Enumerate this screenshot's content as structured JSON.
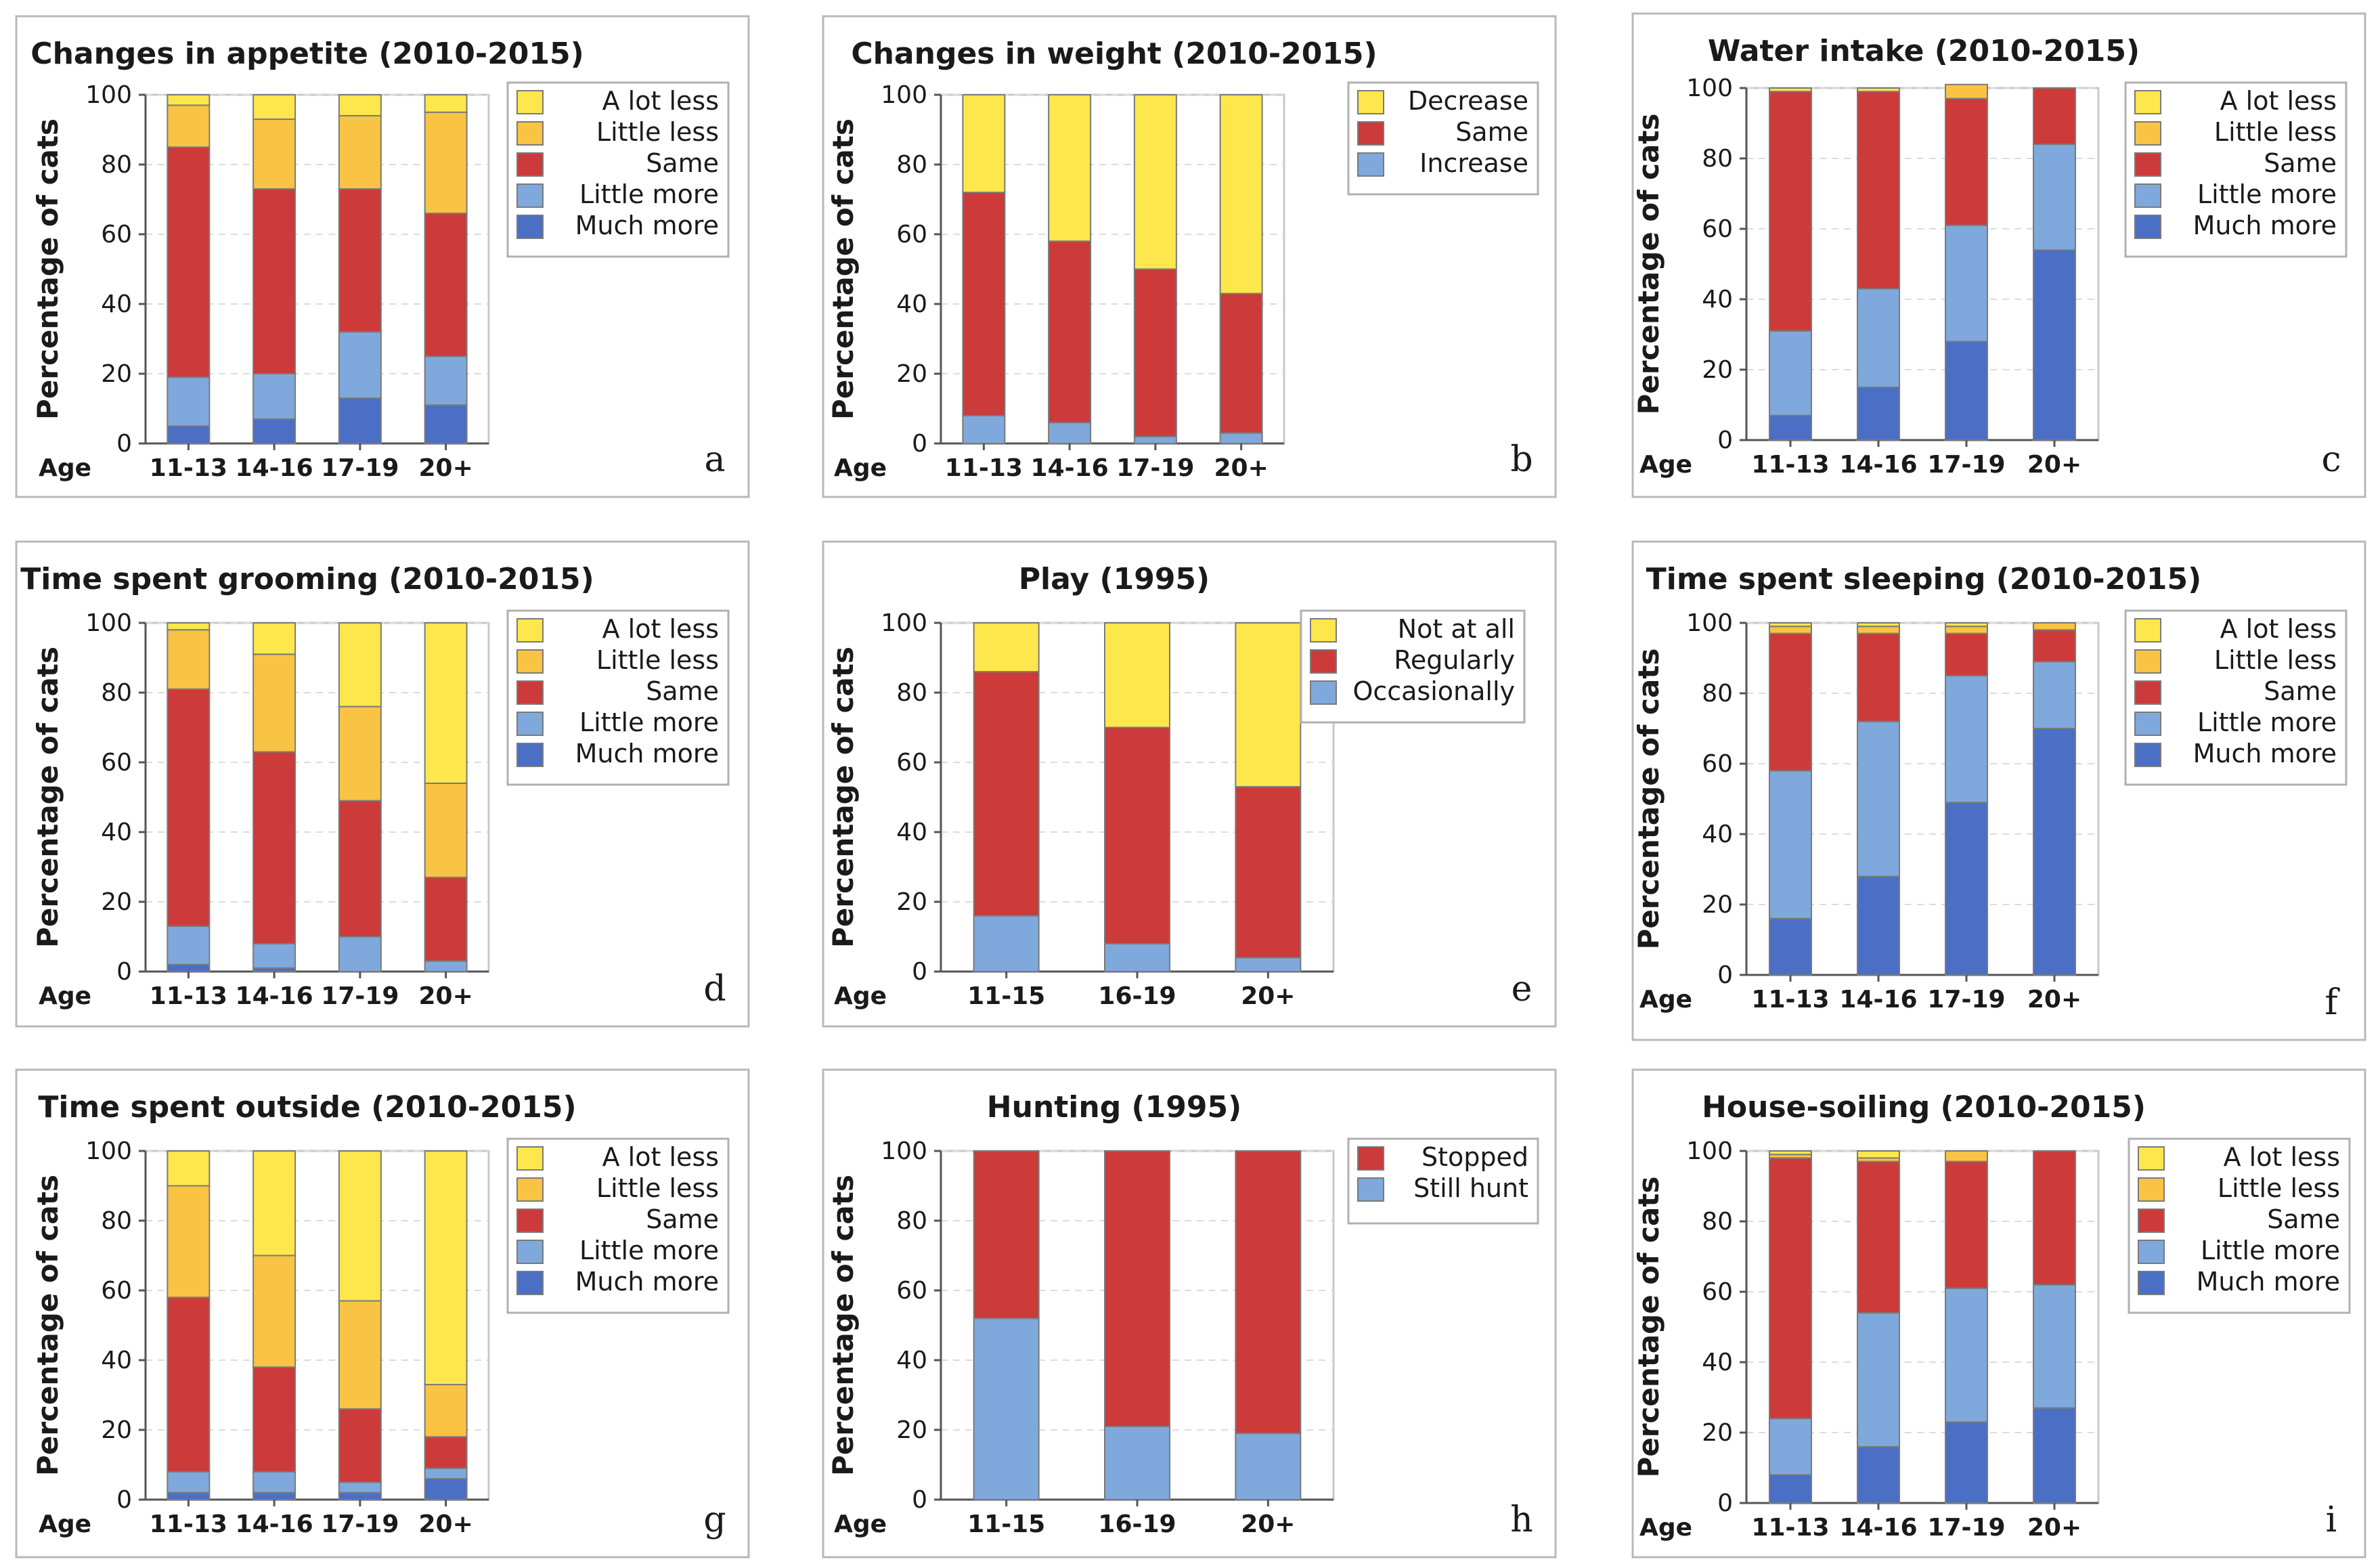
{
  "colors": {
    "A lot less": "#FDE74C",
    "Little less": "#F9C443",
    "Same": "#CC3A3A",
    "Little more": "#7FA9DC",
    "Much more": "#4A6FC4",
    "Decrease": "#FDE74C",
    "Increase": "#7FA9DC",
    "Not at all": "#FDE74C",
    "Regularly": "#CC3A3A",
    "Occasionally": "#7FA9DC",
    "Stopped": "#CC3A3A",
    "Still hunt": "#7FA9DC"
  },
  "chart_data": [
    {
      "id": "a",
      "panel_label": "a",
      "type": "bar",
      "stacked": true,
      "title": "Changes in appetite (2010-2015)",
      "xlabel": "Age",
      "ylabel": "Percentage of cats",
      "ylim": [
        0,
        100
      ],
      "yticks": [
        "0",
        "20",
        "40",
        "60",
        "80",
        "100"
      ],
      "categories": [
        "11-13",
        "14-16",
        "17-19",
        "20+"
      ],
      "legend": [
        "A lot less",
        "Little less",
        "Same",
        "Little more",
        "Much more"
      ],
      "series": [
        {
          "name": "Much more",
          "values": [
            5,
            7,
            13,
            11
          ]
        },
        {
          "name": "Little more",
          "values": [
            14,
            13,
            19,
            14
          ]
        },
        {
          "name": "Same",
          "values": [
            66,
            53,
            41,
            41
          ]
        },
        {
          "name": "Little less",
          "values": [
            12,
            20,
            21,
            29
          ]
        },
        {
          "name": "A lot less",
          "values": [
            3,
            7,
            6,
            5
          ]
        }
      ]
    },
    {
      "id": "b",
      "panel_label": "b",
      "type": "bar",
      "stacked": true,
      "title": "Changes in weight (2010-2015)",
      "xlabel": "Age",
      "ylabel": "Percentage of cats",
      "ylim": [
        0,
        100
      ],
      "yticks": [
        "0",
        "20",
        "40",
        "60",
        "80",
        "100"
      ],
      "categories": [
        "11-13",
        "14-16",
        "17-19",
        "20+"
      ],
      "legend": [
        "Decrease",
        "Same",
        "Increase"
      ],
      "series": [
        {
          "name": "Increase",
          "values": [
            8,
            6,
            2,
            3
          ]
        },
        {
          "name": "Same",
          "values": [
            64,
            52,
            48,
            40
          ]
        },
        {
          "name": "Decrease",
          "values": [
            28,
            42,
            50,
            57
          ]
        }
      ]
    },
    {
      "id": "c",
      "panel_label": "c",
      "type": "bar",
      "stacked": true,
      "title": "Water intake (2010-2015)",
      "xlabel": "Age",
      "ylabel": "Percentage of cats",
      "ylim": [
        0,
        100
      ],
      "yticks": [
        "0",
        "20",
        "40",
        "60",
        "80",
        "100"
      ],
      "categories": [
        "11-13",
        "14-16",
        "17-19",
        "20+"
      ],
      "legend": [
        "A lot less",
        "Little less",
        "Same",
        "Little more",
        "Much more"
      ],
      "series": [
        {
          "name": "Much more",
          "values": [
            7,
            15,
            28,
            54
          ]
        },
        {
          "name": "Little more",
          "values": [
            24,
            28,
            33,
            30
          ]
        },
        {
          "name": "Same",
          "values": [
            68,
            56,
            36,
            16
          ]
        },
        {
          "name": "Little less",
          "values": [
            0,
            0,
            4,
            0
          ]
        },
        {
          "name": "A lot less",
          "values": [
            1,
            1,
            0,
            0
          ]
        }
      ]
    },
    {
      "id": "d",
      "panel_label": "d",
      "type": "bar",
      "stacked": true,
      "title": "Time spent grooming (2010-2015)",
      "xlabel": "Age",
      "ylabel": "Percentage of cats",
      "ylim": [
        0,
        100
      ],
      "yticks": [
        "0",
        "20",
        "40",
        "60",
        "80",
        "100"
      ],
      "categories": [
        "11-13",
        "14-16",
        "17-19",
        "20+"
      ],
      "legend": [
        "A lot less",
        "Little less",
        "Same",
        "Little more",
        "Much more"
      ],
      "series": [
        {
          "name": "Much more",
          "values": [
            2,
            1,
            0,
            0
          ]
        },
        {
          "name": "Little more",
          "values": [
            11,
            7,
            10,
            3
          ]
        },
        {
          "name": "Same",
          "values": [
            68,
            55,
            39,
            24
          ]
        },
        {
          "name": "Little less",
          "values": [
            17,
            28,
            27,
            27
          ]
        },
        {
          "name": "A lot less",
          "values": [
            2,
            9,
            24,
            46
          ]
        }
      ]
    },
    {
      "id": "e",
      "panel_label": "e",
      "type": "bar",
      "stacked": true,
      "title": "Play (1995)",
      "xlabel": "Age",
      "ylabel": "Percentage of cats",
      "ylim": [
        0,
        100
      ],
      "yticks": [
        "0",
        "20",
        "40",
        "60",
        "80",
        "100"
      ],
      "categories": [
        "11-15",
        "16-19",
        "20+"
      ],
      "legend": [
        "Not at all",
        "Regularly",
        "Occasionally"
      ],
      "series": [
        {
          "name": "Occasionally",
          "values": [
            16,
            8,
            4
          ]
        },
        {
          "name": "Regularly",
          "values": [
            70,
            62,
            49
          ]
        },
        {
          "name": "Not at all",
          "values": [
            14,
            30,
            47
          ]
        }
      ]
    },
    {
      "id": "f",
      "panel_label": "f",
      "type": "bar",
      "stacked": true,
      "title": "Time spent sleeping (2010-2015)",
      "xlabel": "Age",
      "ylabel": "Percentage of cats",
      "ylim": [
        0,
        100
      ],
      "yticks": [
        "0",
        "20",
        "40",
        "60",
        "80",
        "100"
      ],
      "categories": [
        "11-13",
        "14-16",
        "17-19",
        "20+"
      ],
      "legend": [
        "A lot less",
        "Little less",
        "Same",
        "Little more",
        "Much more"
      ],
      "series": [
        {
          "name": "Much more",
          "values": [
            16,
            28,
            49,
            70
          ]
        },
        {
          "name": "Little more",
          "values": [
            42,
            44,
            36,
            19
          ]
        },
        {
          "name": "Same",
          "values": [
            39,
            25,
            12,
            9
          ]
        },
        {
          "name": "Little less",
          "values": [
            2,
            2,
            2,
            2
          ]
        },
        {
          "name": "A lot less",
          "values": [
            1,
            1,
            1,
            0
          ]
        }
      ]
    },
    {
      "id": "g",
      "panel_label": "g",
      "type": "bar",
      "stacked": true,
      "title": "Time spent outside (2010-2015)",
      "xlabel": "Age",
      "ylabel": "Percentage of cats",
      "ylim": [
        0,
        100
      ],
      "yticks": [
        "0",
        "20",
        "40",
        "60",
        "80",
        "100"
      ],
      "categories": [
        "11-13",
        "14-16",
        "17-19",
        "20+"
      ],
      "legend": [
        "A lot less",
        "Little less",
        "Same",
        "Little more",
        "Much more"
      ],
      "series": [
        {
          "name": "Much more",
          "values": [
            2,
            2,
            2,
            6
          ]
        },
        {
          "name": "Little more",
          "values": [
            6,
            6,
            3,
            3
          ]
        },
        {
          "name": "Same",
          "values": [
            50,
            30,
            21,
            9
          ]
        },
        {
          "name": "Little less",
          "values": [
            32,
            32,
            31,
            15
          ]
        },
        {
          "name": "A lot less",
          "values": [
            10,
            30,
            43,
            67
          ]
        }
      ]
    },
    {
      "id": "h",
      "panel_label": "h",
      "type": "bar",
      "stacked": true,
      "title": "Hunting (1995)",
      "xlabel": "Age",
      "ylabel": "Percentage of cats",
      "ylim": [
        0,
        100
      ],
      "yticks": [
        "0",
        "20",
        "40",
        "60",
        "80",
        "100"
      ],
      "categories": [
        "11-15",
        "16-19",
        "20+"
      ],
      "legend": [
        "Stopped",
        "Still hunt"
      ],
      "series": [
        {
          "name": "Still hunt",
          "values": [
            52,
            21,
            19
          ]
        },
        {
          "name": "Stopped",
          "values": [
            48,
            79,
            81
          ]
        }
      ]
    },
    {
      "id": "i",
      "panel_label": "i",
      "type": "bar",
      "stacked": true,
      "title": "House-soiling (2010-2015)",
      "xlabel": "Age",
      "ylabel": "Percentage of cats",
      "ylim": [
        0,
        100
      ],
      "yticks": [
        "0",
        "20",
        "40",
        "60",
        "80",
        "100"
      ],
      "categories": [
        "11-13",
        "14-16",
        "17-19",
        "20+"
      ],
      "legend": [
        "A lot less",
        "Little less",
        "Same",
        "Little more",
        "Much more"
      ],
      "series": [
        {
          "name": "Much more",
          "values": [
            8,
            16,
            23,
            27
          ]
        },
        {
          "name": "Little more",
          "values": [
            16,
            38,
            38,
            35
          ]
        },
        {
          "name": "Same",
          "values": [
            74,
            43,
            36,
            38
          ]
        },
        {
          "name": "Little less",
          "values": [
            1,
            1,
            3,
            0
          ]
        },
        {
          "name": "A lot less",
          "values": [
            1,
            2,
            0,
            0
          ]
        }
      ]
    }
  ]
}
